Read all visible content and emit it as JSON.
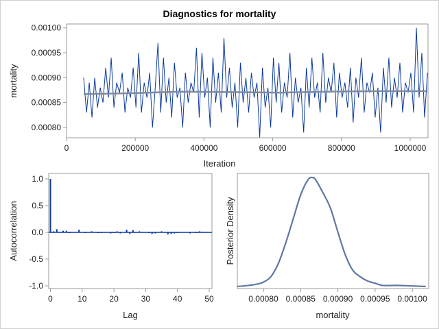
{
  "chart_data": [
    {
      "type": "line",
      "title": "Diagnostics for mortality",
      "xlabel": "Iteration",
      "ylabel": "mortality",
      "xlim": [
        0,
        1050000
      ],
      "ylim": [
        0.00078,
        0.00101
      ],
      "xticks": [
        "0",
        "200000",
        "400000",
        "600000",
        "800000",
        "1000000"
      ],
      "yticks": [
        "0.00080",
        "0.00085",
        "0.00090",
        "0.00095",
        "0.00100"
      ],
      "x_range": [
        50000,
        1050000
      ],
      "series": [
        {
          "values": [
            0.0009,
            0.00083,
            0.00089,
            0.00082,
            0.0009,
            0.00084,
            0.00088,
            0.00085,
            0.00092,
            0.00086,
            0.00094,
            0.00084,
            0.00089,
            0.00087,
            0.00091,
            0.00083,
            0.00088,
            0.00086,
            0.00092,
            0.00084,
            0.00095,
            0.00083,
            0.00089,
            0.00086,
            0.00091,
            0.0008,
            0.00088,
            0.00097,
            0.00083,
            0.00094,
            0.00085,
            0.0009,
            0.00082,
            0.00093,
            0.00086,
            0.00088,
            0.0008,
            0.00091,
            0.00085,
            0.00089,
            0.00087,
            0.00096,
            0.00082,
            0.00095,
            0.00086,
            0.0009,
            0.0008,
            0.00094,
            0.00085,
            0.00091,
            0.00083,
            0.00098,
            0.00086,
            0.00092,
            0.00084,
            0.00089,
            0.0008,
            0.00093,
            0.00085,
            0.0009,
            0.00083,
            0.00091,
            0.00086,
            0.00089,
            0.00078,
            0.00092,
            0.00084,
            0.00088,
            0.0008,
            0.00094,
            0.00085,
            0.00093,
            0.00083,
            0.00089,
            0.00086,
            0.00095,
            0.00082,
            0.0009,
            0.00085,
            0.00088,
            0.00079,
            0.00092,
            0.00084,
            0.00094,
            0.00086,
            0.00089,
            0.00083,
            0.00095,
            0.00085,
            0.0009,
            0.00087,
            0.00093,
            0.00082,
            0.00091,
            0.00086,
            0.00089,
            0.00084,
            0.00092,
            0.00081,
            0.0009,
            0.00086,
            0.00094,
            0.00083,
            0.00089,
            0.00087,
            0.00091,
            0.00082,
            0.00088,
            0.00079,
            0.00092,
            0.00085,
            0.00094,
            0.00084,
            0.0009,
            0.00086,
            0.00093,
            0.00083,
            0.00089,
            0.00087,
            0.00091,
            0.00083,
            0.001,
            0.00086,
            0.00095,
            0.00082,
            0.00091
          ]
        },
        {
          "name": "",
          "values_trend": [
            0.000867,
            0.000869,
            0.000872,
            0.000871,
            0.00087,
            0.000872,
            0.000873,
            0.000873
          ]
        }
      ],
      "colors": {
        "trace": "#0b3a9c",
        "trend": "#7d8aa0"
      }
    },
    {
      "type": "bar",
      "xlabel": "Lag",
      "ylabel": "Autocorrelation",
      "xlim": [
        0,
        51
      ],
      "ylim": [
        -1.05,
        1.05
      ],
      "xticks": [
        "0",
        "10",
        "20",
        "30",
        "40",
        "50"
      ],
      "yticks": [
        "-1.0",
        "-0.5",
        "0.0",
        "0.5",
        "1.0"
      ],
      "lags": [
        0,
        1,
        2,
        3,
        4,
        5,
        6,
        7,
        8,
        9,
        10,
        11,
        12,
        13,
        14,
        15,
        16,
        17,
        18,
        19,
        20,
        21,
        22,
        23,
        24,
        25,
        26,
        27,
        28,
        29,
        30,
        31,
        32,
        33,
        34,
        35,
        36,
        37,
        38,
        39,
        40,
        41,
        42,
        43,
        44,
        45,
        46,
        47,
        48,
        49,
        50
      ],
      "values": [
        1.0,
        0.02,
        0.06,
        0.01,
        0.03,
        0.03,
        -0.01,
        0.0,
        0.0,
        0.05,
        0.0,
        -0.01,
        0.0,
        0.02,
        0.0,
        -0.01,
        -0.01,
        0.0,
        0.0,
        -0.02,
        -0.01,
        0.02,
        -0.02,
        0.0,
        0.05,
        -0.03,
        0.04,
        0.0,
        0.02,
        0.0,
        0.0,
        -0.01,
        -0.03,
        -0.02,
        0.0,
        0.02,
        0.0,
        -0.04,
        -0.03,
        -0.02,
        -0.01,
        0.0,
        0.0,
        0.0,
        -0.02,
        0.0,
        -0.01,
        0.02,
        0.01,
        0.01,
        0.0
      ],
      "color": "#0b3a9c"
    },
    {
      "type": "line",
      "xlabel": "mortality",
      "ylabel": "Posterior Density",
      "xlim": [
        0.000765,
        0.001022
      ],
      "xticks": [
        "0.00080",
        "0.00085",
        "0.00090",
        "0.00095",
        "0.00100"
      ],
      "x": [
        0.000765,
        0.00078,
        0.00079,
        0.0008,
        0.00081,
        0.00082,
        0.00083,
        0.00084,
        0.00085,
        0.00086,
        0.000866,
        0.00087,
        0.00088,
        0.00089,
        0.0009,
        0.00091,
        0.00092,
        0.00093,
        0.00094,
        0.00095,
        0.00096,
        0.00098,
        0.001,
        0.001018
      ],
      "y": [
        0.0,
        0.01,
        0.02,
        0.04,
        0.09,
        0.21,
        0.4,
        0.62,
        0.84,
        0.98,
        1.0,
        0.98,
        0.86,
        0.72,
        0.5,
        0.29,
        0.15,
        0.09,
        0.05,
        0.03,
        0.01,
        0.01,
        0.005,
        0.0
      ],
      "color": "#5e78a3"
    }
  ]
}
